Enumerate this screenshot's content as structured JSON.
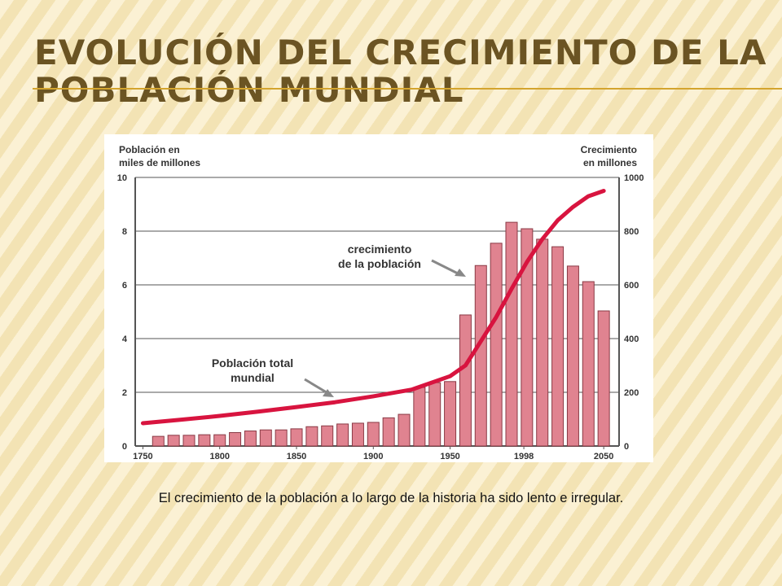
{
  "slide": {
    "title": [
      "EVOLUCIÓN DEL CRECIMIENTO DE LA",
      "POBLACIÓN MUNDIAL"
    ],
    "caption": "El crecimiento de la población a lo largo de la historia ha sido lento e irregular."
  },
  "chart_data": {
    "type": "bar-line",
    "y_label": [
      "Población en",
      "miles de millones"
    ],
    "y2_label": [
      "Crecimiento",
      "en millones"
    ],
    "annotations": [
      {
        "lines": [
          "crecimiento",
          "de la población"
        ]
      },
      {
        "lines": [
          "Población total",
          "mundial"
        ]
      }
    ],
    "xlim": [
      1745,
      2060
    ],
    "xticks": [
      1750,
      1800,
      1850,
      1900,
      1950,
      1998,
      2050
    ],
    "ylim": [
      0,
      10
    ],
    "yticks": [
      0,
      2,
      4,
      6,
      8,
      10
    ],
    "y2lim": [
      0,
      1000
    ],
    "y2ticks": [
      0,
      200,
      400,
      600,
      800,
      1000
    ],
    "grid": true,
    "series": [
      {
        "type": "bar",
        "axis": "y2",
        "color": "#e08390",
        "x": [
          1760,
          1770,
          1780,
          1790,
          1800,
          1810,
          1820,
          1830,
          1840,
          1850,
          1860,
          1870,
          1880,
          1890,
          1900,
          1910,
          1920,
          1930,
          1940,
          1950,
          1960,
          1970,
          1980,
          1990,
          2000,
          2010,
          2020,
          2030,
          2040,
          2050
        ],
        "values": [
          36,
          40,
          40,
          42,
          42,
          50,
          56,
          60,
          60,
          64,
          72,
          75,
          82,
          85,
          88,
          105,
          118,
          218,
          236,
          240,
          488,
          672,
          755,
          833,
          809,
          770,
          742,
          670,
          612,
          503
        ]
      },
      {
        "type": "line",
        "axis": "y",
        "color": "#d8143f",
        "x": [
          1750,
          1775,
          1800,
          1825,
          1850,
          1875,
          1900,
          1925,
          1950,
          1960,
          1970,
          1980,
          1990,
          2000,
          2010,
          2020,
          2030,
          2040,
          2050
        ],
        "values": [
          0.85,
          0.98,
          1.12,
          1.28,
          1.45,
          1.63,
          1.85,
          2.1,
          2.6,
          3.0,
          3.9,
          4.8,
          5.85,
          6.85,
          7.7,
          8.4,
          8.9,
          9.3,
          9.5
        ]
      }
    ]
  }
}
